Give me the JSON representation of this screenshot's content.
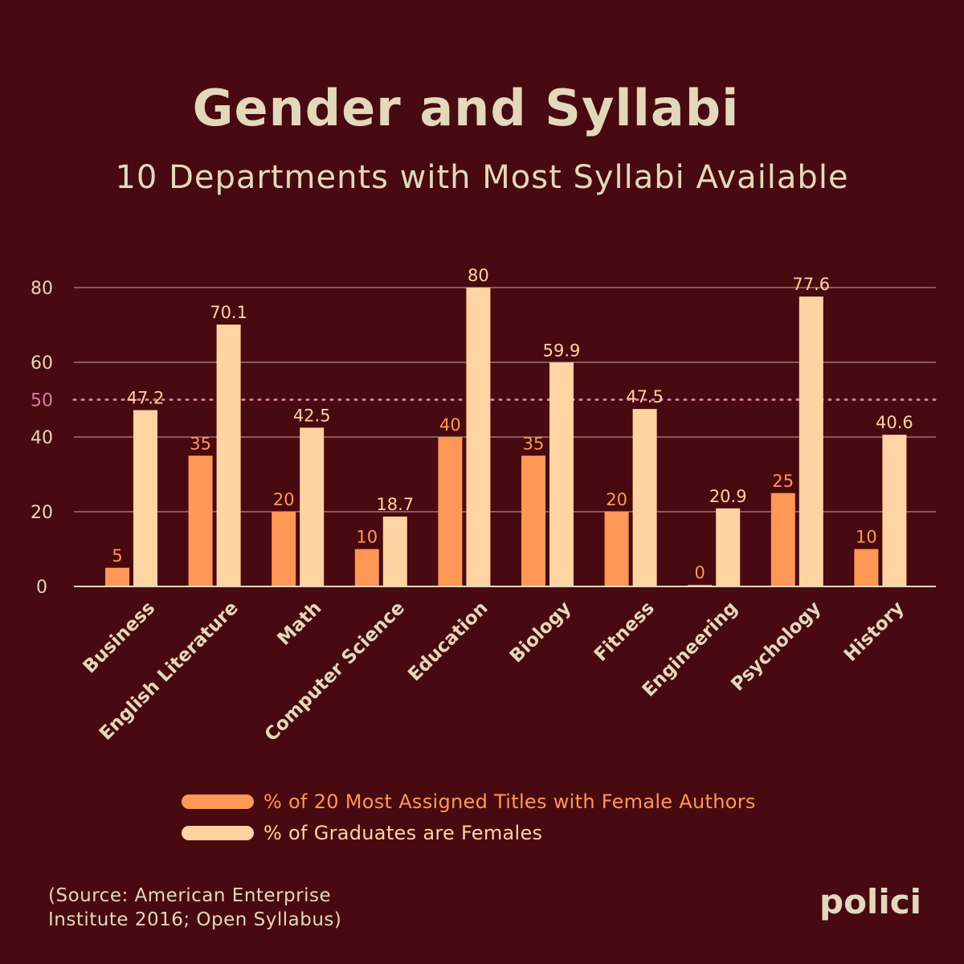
{
  "header": {
    "title": "Gender and Syllabi",
    "subtitle": "10 Departments with Most Syllabi Available"
  },
  "colors": {
    "background": "#480a10",
    "series1": "#ff9757",
    "series2": "#ffd3a2",
    "text": "#e3d8bc",
    "reference_line": "#d97aa0"
  },
  "chart_data": {
    "type": "bar",
    "categories": [
      "Business",
      "English Literature",
      "Math",
      "Computer Science",
      "Education",
      "Biology",
      "Fitness",
      "Engineering",
      "Psychology",
      "History"
    ],
    "series": [
      {
        "name": "% of 20 Most Assigned Titles with Female Authors",
        "values": [
          5,
          35,
          20,
          10,
          40,
          35,
          20,
          0,
          25,
          10
        ]
      },
      {
        "name": "% of Graduates are Females",
        "values": [
          47.2,
          70.1,
          42.5,
          18.7,
          80,
          59.9,
          47.5,
          20.9,
          77.6,
          40.6
        ]
      }
    ],
    "value_labels": [
      [
        "5",
        "35",
        "20",
        "10",
        "40",
        "35",
        "20",
        "0",
        "25",
        "10"
      ],
      [
        "47.2",
        "70.1",
        "42.5",
        "18.7",
        "80",
        "59.9",
        "47.5",
        "20.9",
        "77.6",
        "40.6"
      ]
    ],
    "yticks": [
      0,
      20,
      40,
      60,
      80
    ],
    "ylim": [
      0,
      80
    ],
    "reference_line": {
      "value": 50,
      "label": "50"
    },
    "grid": true,
    "legend_position": "bottom"
  },
  "footer": {
    "source": "(Source: American Enterprise Institute 2016; Open Syllabus)",
    "brand": "polici"
  }
}
